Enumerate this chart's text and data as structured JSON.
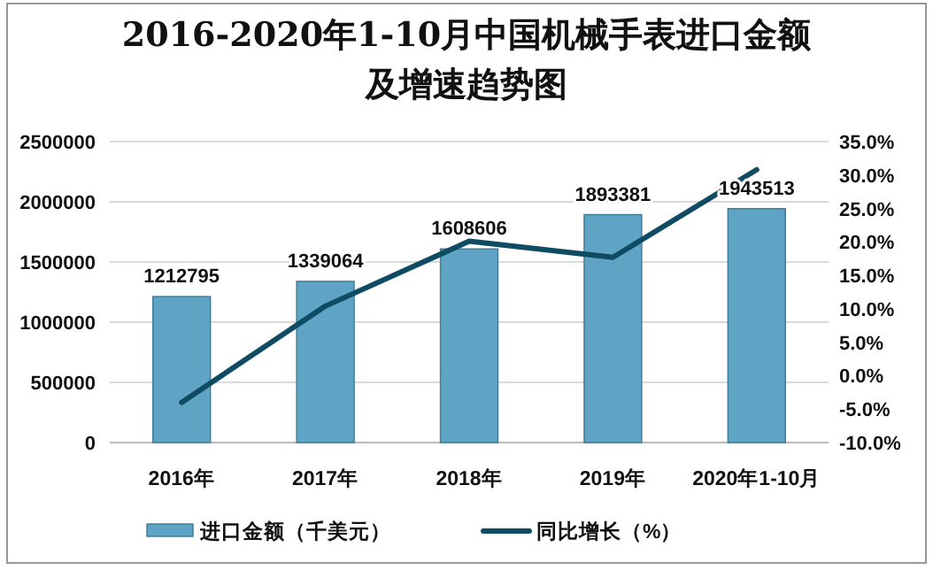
{
  "chart_data": {
    "type": "bar",
    "title": "2016-2020年1-10月中国机械手表进口金额及增速趋势图",
    "categories": [
      "2016年",
      "2017年",
      "2018年",
      "2019年",
      "2020年1-10月"
    ],
    "series": [
      {
        "name": "进口金额（千美元）",
        "color": "#5fa3c5",
        "values": [
          1212795,
          1339064,
          1608606,
          1893381,
          1943513
        ],
        "value_labels": [
          "1212795",
          "1339064",
          "1608606",
          "1893381",
          "1943513"
        ]
      },
      {
        "name": "同比增长（%）",
        "type": "line",
        "axis": "y2",
        "color": "#0f4c63",
        "values": [
          -4.0,
          10.4,
          20.1,
          17.7,
          30.8
        ]
      }
    ],
    "ylim": [
      0,
      2500000
    ],
    "yticks": [
      0,
      500000,
      1000000,
      1500000,
      2000000,
      2500000
    ],
    "y2lim": [
      -10,
      35
    ],
    "y2ticks": [
      {
        "value": -10,
        "label": "-10.0%"
      },
      {
        "value": -5,
        "label": "-5.0%"
      },
      {
        "value": 0,
        "label": "0.0%"
      },
      {
        "value": 5,
        "label": "5.0%"
      },
      {
        "value": 10,
        "label": "10.0%"
      },
      {
        "value": 15,
        "label": "15.0%"
      },
      {
        "value": 20,
        "label": "20.0%"
      },
      {
        "value": 25,
        "label": "25.0%"
      },
      {
        "value": 30,
        "label": "30.0%"
      },
      {
        "value": 35,
        "label": "35.0%"
      }
    ],
    "grid": "y",
    "legend": "bottom",
    "line_style": "solid",
    "marker": "none"
  }
}
